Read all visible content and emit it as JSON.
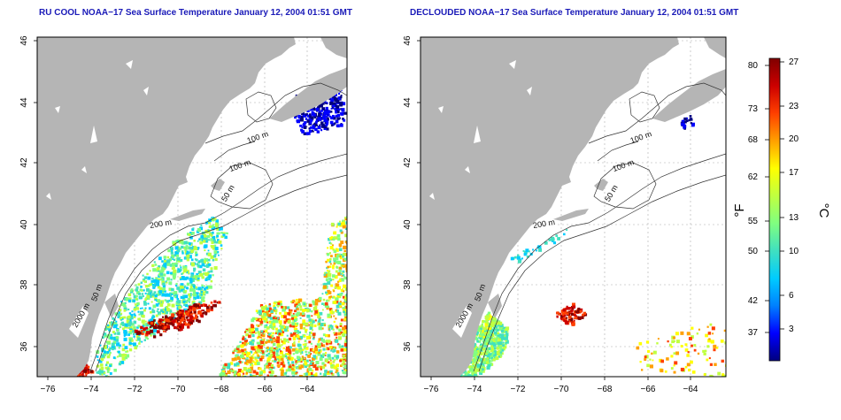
{
  "maps": [
    {
      "title": "RU COOL NOAA−17 Sea Surface Temperature January 12, 2004 01:51 GMT",
      "x_ticks": [
        "−76",
        "−74",
        "−72",
        "−70",
        "−68",
        "−66",
        "−64"
      ],
      "y_ticks": [
        "36",
        "38",
        "40",
        "42",
        "44",
        "46"
      ],
      "contour_labels": [
        "100 m",
        "100 m",
        "50 m",
        "200 m",
        "50 m",
        "2000 m"
      ],
      "variant": "cloudy"
    },
    {
      "title": "DECLOUDED NOAA−17 Sea Surface Temperature January 12, 2004 01:51 GMT",
      "x_ticks": [
        "−76",
        "−74",
        "−72",
        "−70",
        "−68",
        "−66",
        "−64"
      ],
      "y_ticks": [
        "36",
        "38",
        "40",
        "42",
        "44",
        "46"
      ],
      "contour_labels": [
        "100 m",
        "100 m",
        "50 m",
        "200 m",
        "50 m",
        "2000 m"
      ],
      "variant": "declouded"
    }
  ],
  "colorbar": {
    "fahrenheit_ticks": [
      "80",
      "73",
      "68",
      "62",
      "55",
      "50",
      "42",
      "37"
    ],
    "celsius_ticks": [
      "27",
      "23",
      "20",
      "17",
      "13",
      "10",
      "6",
      "3"
    ],
    "fahrenheit_label": "°F",
    "celsius_label": "°C",
    "colors": [
      "#000080",
      "#0000ff",
      "#0080ff",
      "#00ccff",
      "#40e0c0",
      "#80ff80",
      "#c0ff40",
      "#ffff00",
      "#ffa000",
      "#ff4000",
      "#cc0000",
      "#800000"
    ]
  },
  "palette": {
    "land": "#b5b5b5",
    "ocean": "#ffffff",
    "title": "#1a1ab8",
    "contour": "#333333"
  }
}
